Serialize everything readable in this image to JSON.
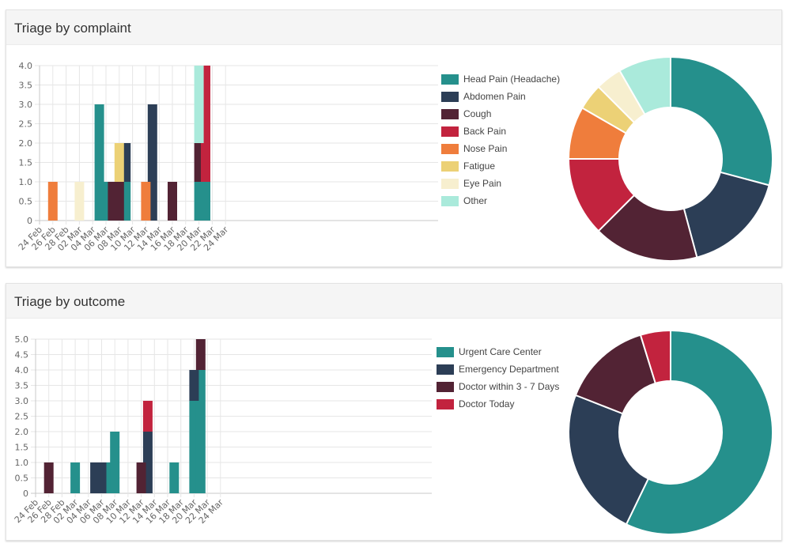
{
  "panels": [
    {
      "title": "Triage by complaint",
      "legend": [
        {
          "label": "Head Pain (Headache)",
          "color": "#25908c"
        },
        {
          "label": "Abdomen Pain",
          "color": "#2c3e56"
        },
        {
          "label": "Cough",
          "color": "#522334"
        },
        {
          "label": "Back Pain",
          "color": "#c2233e"
        },
        {
          "label": "Nose Pain",
          "color": "#ef7d3c"
        },
        {
          "label": "Fatigue",
          "color": "#ecd176"
        },
        {
          "label": "Eye Pain",
          "color": "#f7efcf"
        },
        {
          "label": "Other",
          "color": "#aaeadb"
        }
      ]
    },
    {
      "title": "Triage by outcome",
      "legend": [
        {
          "label": "Urgent Care Center",
          "color": "#25908c"
        },
        {
          "label": "Emergency Department",
          "color": "#2c3e56"
        },
        {
          "label": "Doctor within 3 - 7 Days",
          "color": "#522334"
        },
        {
          "label": "Doctor Today",
          "color": "#c2233e"
        }
      ]
    }
  ],
  "chart_data": [
    {
      "type": "bar",
      "stacked": true,
      "title": "Triage by complaint",
      "x_tick_labels": [
        "24 Feb",
        "26 Feb",
        "28 Feb",
        "02 Mar",
        "04 Mar",
        "06 Mar",
        "08 Mar",
        "10 Mar",
        "12 Mar",
        "14 Mar",
        "16 Mar",
        "18 Mar",
        "20 Mar",
        "22 Mar",
        "24 Mar"
      ],
      "y_tick_labels": [
        "4.0",
        "3.5",
        "3.0",
        "2.5",
        "2.0",
        "1.5",
        "1.0",
        "0.5",
        "0"
      ],
      "ylim": [
        0,
        4
      ],
      "grid": true,
      "legend_position": "right",
      "series": [
        {
          "name": "Head Pain (Headache)",
          "color": "#25908c",
          "points": [
            {
              "x": "04 Mar",
              "y": 3
            },
            {
              "x": "05 Mar",
              "y": 1
            },
            {
              "x": "08 Mar",
              "y": 1
            },
            {
              "x": "19 Mar",
              "y": 1
            },
            {
              "x": "20 Mar",
              "y": 1
            }
          ]
        },
        {
          "name": "Abdomen Pain",
          "color": "#2c3e56",
          "points": [
            {
              "x": "08 Mar",
              "y": 1
            },
            {
              "x": "12 Mar",
              "y": 3
            }
          ]
        },
        {
          "name": "Cough",
          "color": "#522334",
          "points": [
            {
              "x": "06 Mar",
              "y": 1
            },
            {
              "x": "07 Mar",
              "y": 1
            },
            {
              "x": "15 Mar",
              "y": 1
            },
            {
              "x": "19 Mar",
              "y": 1
            }
          ]
        },
        {
          "name": "Back Pain",
          "color": "#c2233e",
          "points": [
            {
              "x": "20 Mar",
              "y": 3
            }
          ]
        },
        {
          "name": "Nose Pain",
          "color": "#ef7d3c",
          "points": [
            {
              "x": "26 Feb",
              "y": 1
            },
            {
              "x": "11 Mar",
              "y": 1
            }
          ]
        },
        {
          "name": "Fatigue",
          "color": "#ecd176",
          "points": [
            {
              "x": "07 Mar",
              "y": 1
            }
          ]
        },
        {
          "name": "Eye Pain",
          "color": "#f7efcf",
          "points": [
            {
              "x": "01 Mar",
              "y": 1
            }
          ]
        },
        {
          "name": "Other",
          "color": "#aaeadb",
          "points": [
            {
              "x": "19 Mar",
              "y": 2
            }
          ]
        }
      ]
    },
    {
      "type": "pie",
      "donut": true,
      "labels": [
        "Head Pain (Headache)",
        "Abdomen Pain",
        "Cough",
        "Back Pain",
        "Nose Pain",
        "Fatigue",
        "Eye Pain",
        "Other"
      ],
      "values": [
        7,
        4,
        4,
        3,
        2,
        1,
        1,
        2
      ],
      "colors": [
        "#25908c",
        "#2c3e56",
        "#522334",
        "#c2233e",
        "#ef7d3c",
        "#ecd176",
        "#f7efcf",
        "#aaeadb"
      ]
    },
    {
      "type": "bar",
      "stacked": true,
      "title": "Triage by outcome",
      "x_tick_labels": [
        "24 Feb",
        "26 Feb",
        "28 Feb",
        "02 Mar",
        "04 Mar",
        "06 Mar",
        "08 Mar",
        "10 Mar",
        "12 Mar",
        "14 Mar",
        "16 Mar",
        "18 Mar",
        "20 Mar",
        "22 Mar",
        "24 Mar"
      ],
      "y_tick_labels": [
        "5.0",
        "4.5",
        "4.0",
        "3.5",
        "3.0",
        "2.5",
        "2.0",
        "1.5",
        "1.0",
        "0.5",
        "0"
      ],
      "ylim": [
        0,
        5
      ],
      "grid": true,
      "legend_position": "right",
      "series": [
        {
          "name": "Urgent Care Center",
          "color": "#25908c",
          "points": [
            {
              "x": "01 Mar",
              "y": 1
            },
            {
              "x": "06 Mar",
              "y": 1
            },
            {
              "x": "07 Mar",
              "y": 2
            },
            {
              "x": "16 Mar",
              "y": 1
            },
            {
              "x": "19 Mar",
              "y": 3
            },
            {
              "x": "20 Mar",
              "y": 4
            }
          ]
        },
        {
          "name": "Emergency Department",
          "color": "#2c3e56",
          "points": [
            {
              "x": "04 Mar",
              "y": 1
            },
            {
              "x": "05 Mar",
              "y": 1
            },
            {
              "x": "12 Mar",
              "y": 2
            },
            {
              "x": "19 Mar",
              "y": 1
            }
          ]
        },
        {
          "name": "Doctor within 3 - 7 Days",
          "color": "#522334",
          "points": [
            {
              "x": "26 Feb",
              "y": 1
            },
            {
              "x": "11 Mar",
              "y": 1
            },
            {
              "x": "20 Mar",
              "y": 1
            }
          ]
        },
        {
          "name": "Doctor Today",
          "color": "#c2233e",
          "points": [
            {
              "x": "12 Mar",
              "y": 1
            }
          ]
        }
      ]
    },
    {
      "type": "pie",
      "donut": true,
      "labels": [
        "Urgent Care Center",
        "Emergency Department",
        "Doctor within 3 - 7 Days",
        "Doctor Today"
      ],
      "values": [
        12,
        5,
        3,
        1
      ],
      "colors": [
        "#25908c",
        "#2c3e56",
        "#522334",
        "#c2233e"
      ]
    }
  ]
}
